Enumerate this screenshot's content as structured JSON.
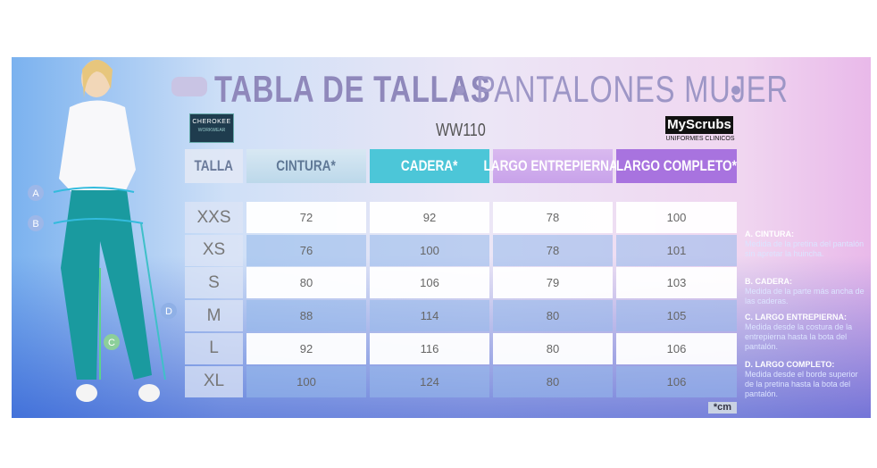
{
  "header": {
    "title": "TABLA DE TALLAS",
    "subtitle": "PANTALONES MUJER"
  },
  "brand": {
    "name": "CHEROKEE",
    "line": "WORKWEAR"
  },
  "model": "WW110",
  "logo": {
    "name": "MyScrubs",
    "tagline": "UNIFORMES CLINICOS"
  },
  "table": {
    "columns": [
      "TALLA",
      "CINTURA*",
      "CADERA*",
      "LARGO ENTREPIERNA*",
      "LARGO COMPLETO*"
    ],
    "rows": [
      [
        "XXS",
        72,
        92,
        78,
        100
      ],
      [
        "XS",
        76,
        100,
        78,
        101
      ],
      [
        "S",
        80,
        106,
        79,
        103
      ],
      [
        "M",
        88,
        114,
        80,
        105
      ],
      [
        "L",
        92,
        116,
        80,
        106
      ],
      [
        "XL",
        100,
        124,
        80,
        106
      ]
    ],
    "unit": "*cm"
  },
  "notes": [
    {
      "title": "A. CINTURA:",
      "text": "Medida de la pretina del pantalón sin apretar la huincha."
    },
    {
      "title": "B. CADERA:",
      "text": "Medida de la parte más ancha de las caderas."
    },
    {
      "title": "C. LARGO ENTREPIERNA:",
      "text": "Medida desde la costura de la entrepierna hasta la bota del pantalón."
    },
    {
      "title": "D. LARGO COMPLETO:",
      "text": "Medida desde el borde superior de la pretina hasta la bota del pantalón."
    }
  ],
  "figure_labels": [
    "A",
    "B",
    "C",
    "D"
  ]
}
